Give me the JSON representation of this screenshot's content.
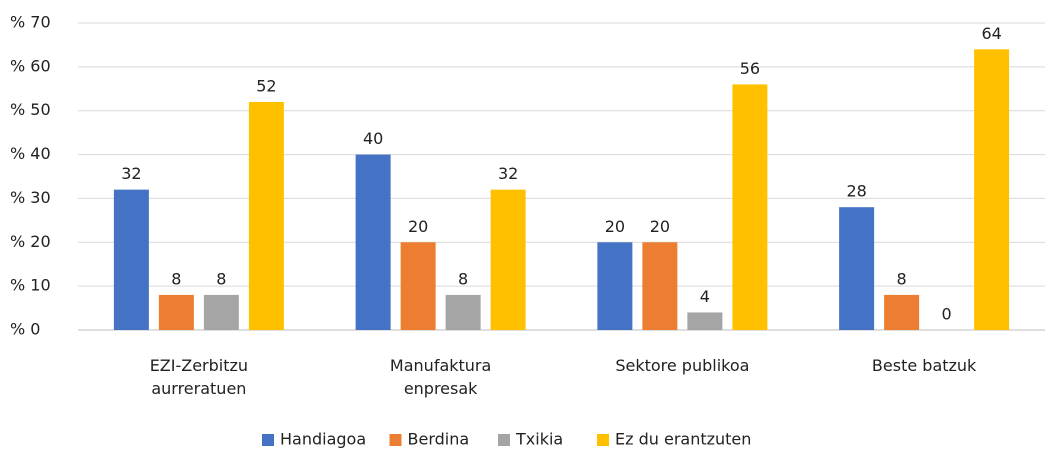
{
  "chart_data": {
    "type": "bar",
    "categories": [
      "EZI-Zerbitzu\naurreratuen",
      "Manufaktura\nenpresak",
      "Sektore publikoa",
      "Beste batzuk"
    ],
    "series": [
      {
        "name": "Handiagoa",
        "color": "#4472c4",
        "values": [
          32,
          40,
          20,
          28
        ]
      },
      {
        "name": "Berdina",
        "color": "#ed7d31",
        "values": [
          8,
          20,
          20,
          8
        ]
      },
      {
        "name": "Txikia",
        "color": "#a5a5a5",
        "values": [
          8,
          8,
          4,
          0
        ]
      },
      {
        "name": "Ez du erantzuten",
        "color": "#ffc000",
        "values": [
          52,
          32,
          56,
          64
        ]
      }
    ],
    "ylim": [
      0,
      70
    ],
    "yticks": [
      {
        "value": 0,
        "label": "% 0"
      },
      {
        "value": 10,
        "label": "% 10"
      },
      {
        "value": 20,
        "label": "% 20"
      },
      {
        "value": 30,
        "label": "% 30"
      },
      {
        "value": 40,
        "label": "% 40"
      },
      {
        "value": 50,
        "label": "% 50"
      },
      {
        "value": 60,
        "label": "% 60"
      },
      {
        "value": 70,
        "label": "% 70"
      }
    ],
    "grid": true,
    "legend": "bottom"
  }
}
